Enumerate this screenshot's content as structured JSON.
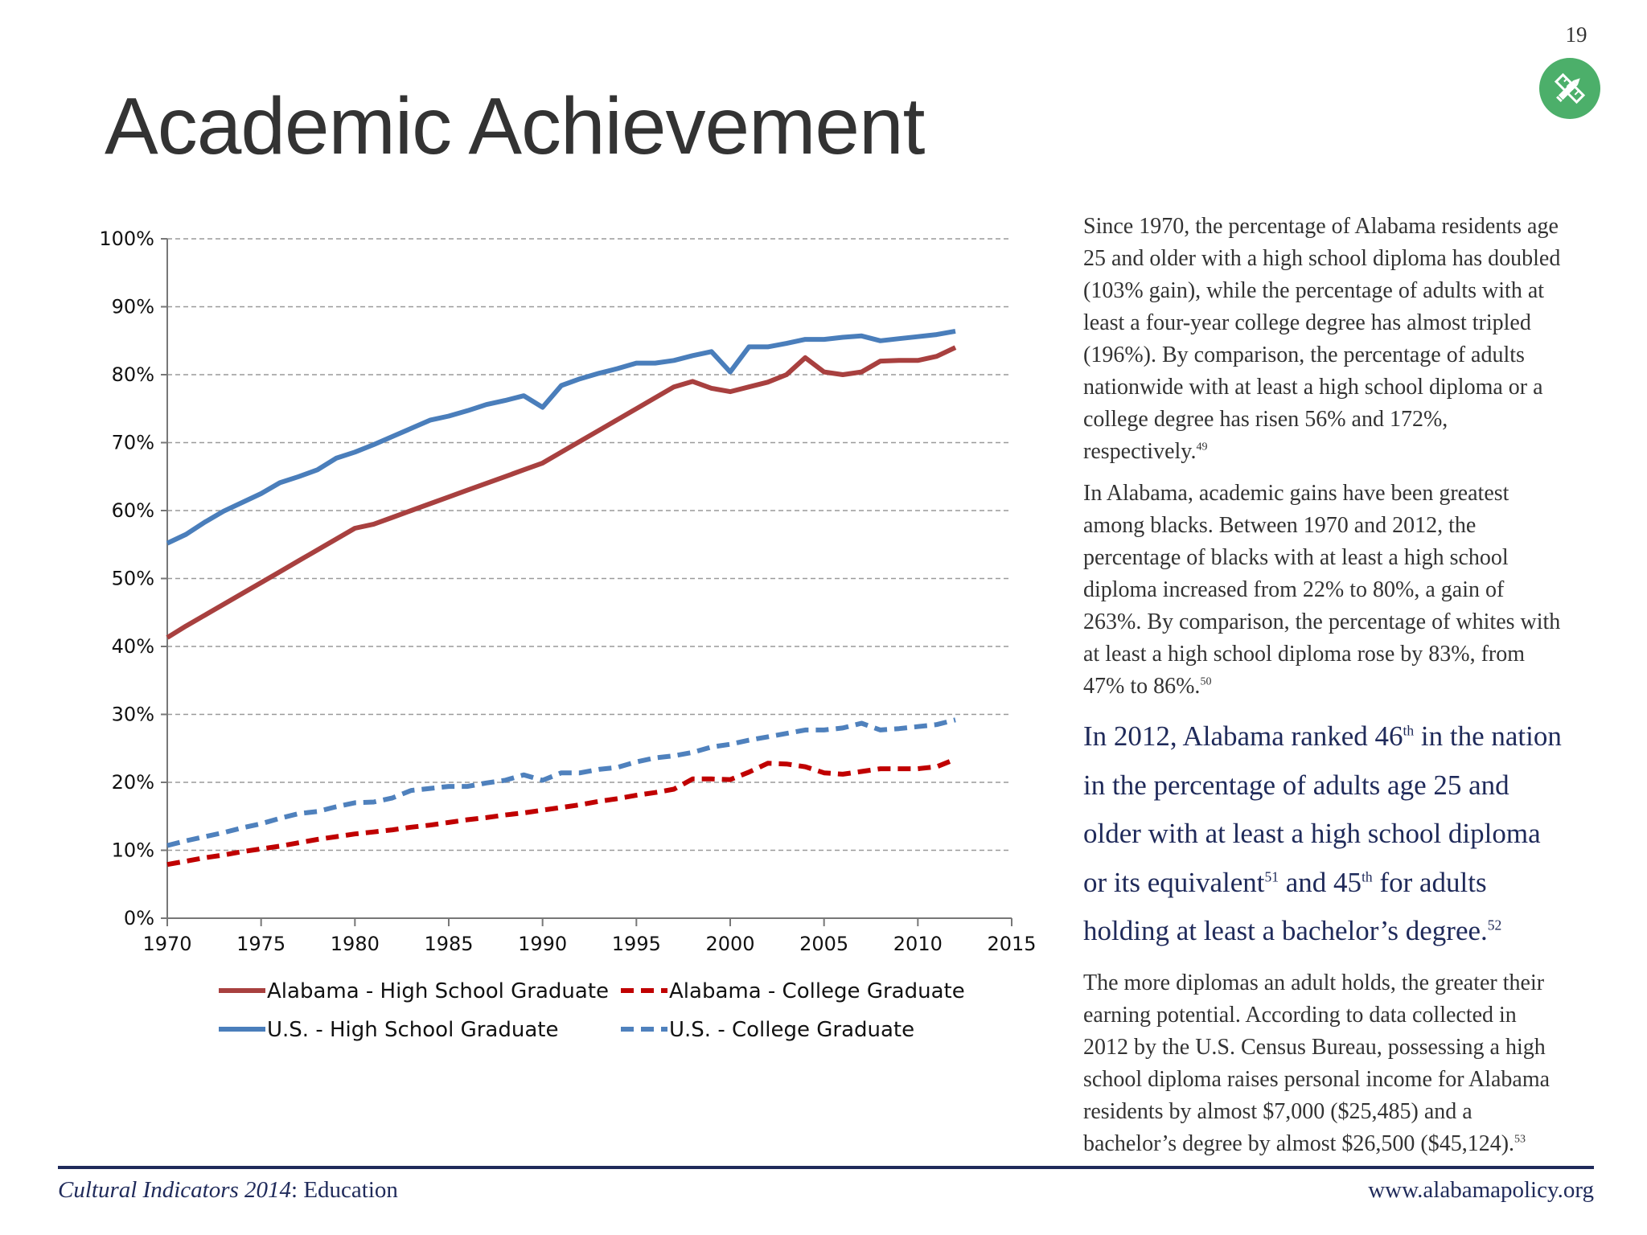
{
  "page_number": "19",
  "badge_icon": "pencil-ruler-icon",
  "title": "Academic Achievement",
  "colors": {
    "alabama": "#a8403f",
    "alabama_college": "#c00000",
    "us": "#4a7ebb",
    "us_college": "#4f81bd",
    "badge": "#4caf6a",
    "navy": "#1f2a5a"
  },
  "paragraphs": [
    {
      "text": "Since 1970, the percentage of Alabama residents age 25 and older with a high school diploma has doubled (103% gain), while the percentage of adults with at least a four-year college degree has almost tripled (196%).  By comparison, the percentage of adults nationwide with at least a high school diploma or a college degree has risen 56% and 172%, respectively.",
      "note": "49"
    },
    {
      "text": "In Alabama, academic gains have been greatest among blacks. Between 1970 and 2012, the percentage of blacks with at least a high school diploma increased from 22% to 80%, a gain of 263%. By comparison, the percentage of whites with at least a high school diploma rose by 83%, from 47% to 86%.",
      "note": "50"
    }
  ],
  "callout": {
    "part1": "In 2012, Alabama ranked 46",
    "sup1": "th",
    "part2": " in the nation in the percentage of adults age 25 and older with at least a high school diploma or its equivalent",
    "note1": "51",
    "part3": " and 45",
    "sup2": "th",
    "part4": " for adults holding at least a bachelor’s degree.",
    "note2": "52"
  },
  "closing": {
    "text": "The more diplomas an adult holds, the greater their earning potential.  According to data collected in 2012 by the U.S. Census Bureau, possessing a high school diploma raises personal income for Alabama residents by almost $7,000 ($25,485) and a bachelor’s degree by almost $26,500 ($45,124).",
    "note": "53"
  },
  "footer": {
    "publication": "Cultural Indicators 2014",
    "section": ": Education",
    "website": "www.alabamapolicy.org"
  },
  "chart_data": {
    "type": "line",
    "title": "",
    "xlabel": "",
    "ylabel": "",
    "xlim": [
      1970,
      2015
    ],
    "ylim": [
      0,
      100
    ],
    "x_ticks": [
      1970,
      1975,
      1980,
      1985,
      1990,
      1995,
      2000,
      2005,
      2010,
      2015
    ],
    "x_tick_labels": [
      "1970",
      "1975",
      "1980",
      "1985",
      "1990",
      "1995",
      "2000",
      "2005",
      "2010",
      "2015"
    ],
    "y_ticks": [
      0,
      10,
      20,
      30,
      40,
      50,
      60,
      70,
      80,
      90,
      100
    ],
    "y_tick_labels": [
      "0%",
      "10%",
      "20%",
      "30%",
      "40%",
      "50%",
      "60%",
      "70%",
      "80%",
      "90%",
      "100%"
    ],
    "grid": "horizontal dashed",
    "legend_position": "bottom",
    "x": [
      1970,
      1971,
      1972,
      1973,
      1974,
      1975,
      1976,
      1977,
      1978,
      1979,
      1980,
      1981,
      1982,
      1983,
      1984,
      1985,
      1986,
      1987,
      1988,
      1989,
      1990,
      1991,
      1992,
      1993,
      1994,
      1995,
      1996,
      1997,
      1998,
      1999,
      2000,
      2001,
      2002,
      2003,
      2004,
      2005,
      2006,
      2007,
      2008,
      2009,
      2010,
      2011,
      2012
    ],
    "series": [
      {
        "name": "Alabama - High School Graduate",
        "color": "#a8403f",
        "style": "solid",
        "values": [
          41.3,
          43.0,
          44.6,
          46.2,
          47.8,
          49.4,
          51.0,
          52.6,
          54.2,
          55.8,
          57.4,
          58.0,
          59.0,
          60.0,
          61.0,
          62.0,
          63.0,
          64.0,
          65.0,
          66.0,
          67.0,
          68.6,
          70.2,
          71.8,
          73.4,
          75.0,
          76.6,
          78.2,
          79.0,
          78.0,
          77.5,
          78.2,
          78.9,
          80.0,
          82.5,
          80.4,
          80.0,
          80.4,
          82.0,
          82.1,
          82.1,
          82.7,
          84.0
        ]
      },
      {
        "name": "Alabama - College Graduate",
        "color": "#c00000",
        "style": "dashed",
        "values": [
          7.9,
          8.4,
          8.9,
          9.3,
          9.8,
          10.2,
          10.6,
          11.1,
          11.6,
          12.0,
          12.4,
          12.7,
          13.0,
          13.4,
          13.7,
          14.1,
          14.5,
          14.8,
          15.2,
          15.5,
          15.9,
          16.3,
          16.7,
          17.2,
          17.6,
          18.1,
          18.5,
          19.0,
          20.5,
          20.5,
          20.4,
          21.5,
          22.8,
          22.7,
          22.3,
          21.4,
          21.2,
          21.6,
          22.0,
          22.0,
          22.0,
          22.3,
          23.4
        ]
      },
      {
        "name": "U.S. - High School Graduate",
        "color": "#4a7ebb",
        "style": "solid",
        "values": [
          55.2,
          56.5,
          58.3,
          59.9,
          61.2,
          62.5,
          64.1,
          65.0,
          66.0,
          67.7,
          68.6,
          69.7,
          70.9,
          72.1,
          73.3,
          73.9,
          74.7,
          75.6,
          76.2,
          76.9,
          75.2,
          78.4,
          79.4,
          80.2,
          80.9,
          81.7,
          81.7,
          82.1,
          82.8,
          83.4,
          80.4,
          84.1,
          84.1,
          84.6,
          85.2,
          85.2,
          85.5,
          85.7,
          85.0,
          85.3,
          85.6,
          85.9,
          86.4
        ]
      },
      {
        "name": "U.S. - College Graduate",
        "color": "#4f81bd",
        "style": "dashed",
        "values": [
          10.7,
          11.4,
          12.0,
          12.6,
          13.3,
          13.9,
          14.7,
          15.4,
          15.7,
          16.4,
          17.0,
          17.1,
          17.7,
          18.8,
          19.1,
          19.4,
          19.4,
          19.9,
          20.3,
          21.1,
          20.3,
          21.4,
          21.4,
          21.9,
          22.2,
          23.0,
          23.6,
          23.9,
          24.4,
          25.2,
          25.6,
          26.2,
          26.7,
          27.2,
          27.7,
          27.7,
          28.0,
          28.7,
          27.7,
          27.9,
          28.2,
          28.5,
          29.2
        ]
      }
    ]
  }
}
